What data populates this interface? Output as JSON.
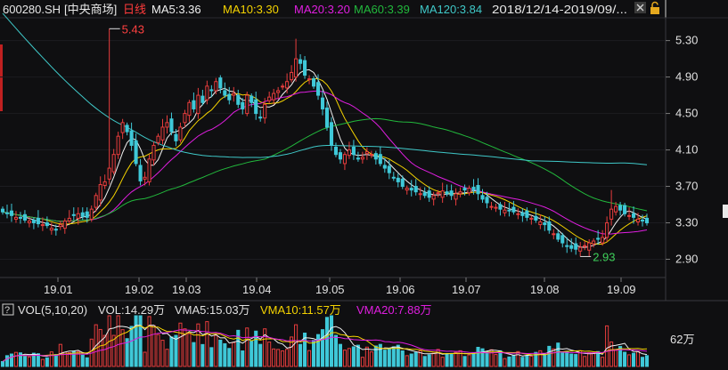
{
  "header": {
    "symbol": "600280.SH",
    "name": "[中央商场]",
    "period": "日线",
    "ma": [
      {
        "label": "MA5:3.36",
        "color": "#f0f0f0"
      },
      {
        "label": "MA10:3.30",
        "color": "#f5d300"
      },
      {
        "label": "MA20:3.20",
        "color": "#e01ee0"
      },
      {
        "label": "MA60:3.39",
        "color": "#22b83c"
      },
      {
        "label": "MA120:3.84",
        "color": "#3fc8c8"
      }
    ],
    "date_range": "2018/12/14-2019/09/...",
    "close_icon": "close-icon",
    "lock_icon": "lock-icon"
  },
  "volume_header": {
    "toggle": "?",
    "indicator": "VOL(5,10,20)",
    "vol": "VOL:14.29万",
    "vma5": "VMA5:15.03万",
    "vma10": "VMA10:11.57万",
    "vma20": "VMA20:7.88万"
  },
  "colors": {
    "background": "#0f0f11",
    "up": "#e83d3d",
    "down": "#3fc8d8",
    "ma5": "#f0f0f0",
    "ma10": "#f5d300",
    "ma20": "#e01ee0",
    "ma60": "#22b83c",
    "ma120": "#3fc8c8"
  },
  "chart_data": {
    "type": "candlestick",
    "y_ticks": [
      5.3,
      4.9,
      4.5,
      4.1,
      3.7,
      3.3,
      2.9
    ],
    "y_range": [
      2.7,
      5.55
    ],
    "x_ticks": [
      "19.01",
      "19.02",
      "19.03",
      "19.04",
      "19.05",
      "19.06",
      "19.07",
      "19.08",
      "19.09"
    ],
    "annotations": {
      "high": "5.43",
      "low": "2.93"
    },
    "volume_tick": "62万",
    "ma_values": {
      "MA5": 3.36,
      "MA10": 3.3,
      "MA20": 3.2,
      "MA60": 3.39,
      "MA120": 3.84
    },
    "volume_values": {
      "VOL": 14.29,
      "VMA5": 15.03,
      "VMA10": 11.57,
      "VMA20": 7.88
    },
    "closes": [
      3.42,
      3.4,
      3.38,
      3.36,
      3.35,
      3.33,
      3.32,
      3.3,
      3.29,
      3.28,
      3.27,
      3.24,
      3.23,
      3.28,
      3.32,
      3.35,
      3.38,
      3.4,
      3.37,
      3.36,
      3.45,
      3.6,
      3.72,
      3.75,
      3.9,
      4.05,
      4.25,
      4.4,
      4.3,
      4.15,
      3.95,
      3.76,
      3.8,
      4.0,
      4.15,
      4.25,
      4.35,
      4.4,
      4.3,
      4.2,
      4.35,
      4.5,
      4.62,
      4.55,
      4.7,
      4.62,
      4.8,
      4.75,
      4.85,
      4.78,
      4.7,
      4.65,
      4.72,
      4.6,
      4.55,
      4.7,
      4.62,
      4.5,
      4.45,
      4.6,
      4.68,
      4.72,
      4.75,
      4.8,
      4.85,
      4.95,
      5.1,
      5.05,
      4.92,
      4.88,
      4.8,
      4.7,
      4.55,
      4.35,
      4.15,
      4.05,
      4.0,
      4.05,
      4.1,
      4.05,
      4.0,
      4.02,
      4.08,
      4.05,
      4.0,
      3.95,
      3.9,
      3.85,
      3.8,
      3.75,
      3.7,
      3.68,
      3.66,
      3.64,
      3.62,
      3.6,
      3.58,
      3.6,
      3.63,
      3.65,
      3.62,
      3.6,
      3.62,
      3.64,
      3.66,
      3.68,
      3.66,
      3.62,
      3.56,
      3.52,
      3.48,
      3.47,
      3.45,
      3.44,
      3.43,
      3.42,
      3.4,
      3.38,
      3.36,
      3.35,
      3.33,
      3.31,
      3.28,
      3.22,
      3.18,
      3.12,
      3.08,
      3.04,
      3.02,
      3.01,
      3.03,
      3.05,
      3.08,
      3.1,
      3.12,
      3.14,
      3.3,
      3.45,
      3.48,
      3.44,
      3.4,
      3.38,
      3.36,
      3.34,
      3.32,
      3.3
    ]
  }
}
